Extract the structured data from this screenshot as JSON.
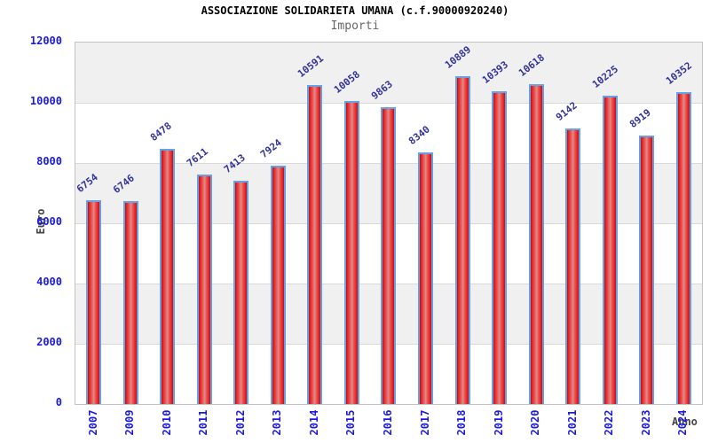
{
  "chart_data": {
    "type": "bar",
    "title": "ASSOCIAZIONE SOLIDARIETA UMANA (c.f.90000920240)",
    "subtitle": "Importi",
    "xlabel": "Anno",
    "ylabel": "Euro",
    "categories": [
      "2007",
      "2009",
      "2010",
      "2011",
      "2012",
      "2013",
      "2014",
      "2015",
      "2016",
      "2017",
      "2018",
      "2019",
      "2020",
      "2021",
      "2022",
      "2023",
      "2024"
    ],
    "values": [
      6754,
      6746,
      8478,
      7611,
      7413,
      7924,
      10591,
      10058,
      9863,
      8340,
      10889,
      10393,
      10618,
      9142,
      10225,
      8919,
      10352
    ],
    "ylim": [
      0,
      12000
    ],
    "yticks": [
      0,
      2000,
      4000,
      6000,
      8000,
      10000,
      12000
    ],
    "grid": "horizontal",
    "legend": "none",
    "colors": {
      "bar_fill": "#ee2222",
      "bar_fill_dark": "#b51616",
      "bar_highlight": "#db8d8d",
      "bar_border": "#66a0e6",
      "tick_label": "#1a1ae0",
      "value_label": "#333399",
      "band_gray": "#f0f0f0",
      "band_white": "#ffffff",
      "gridline": "#d9d9d9",
      "axis_title": "#444444",
      "subtitle": "#666666",
      "title": "#000000"
    }
  }
}
